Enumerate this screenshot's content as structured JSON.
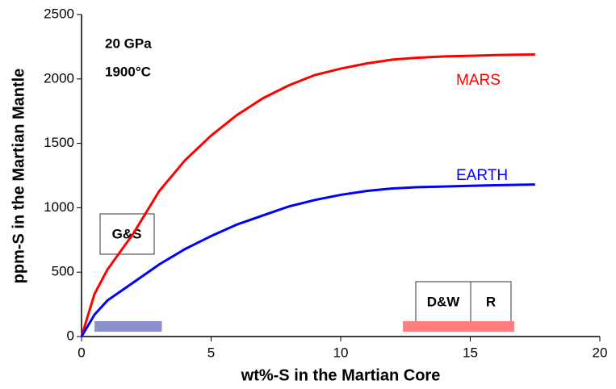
{
  "chart_data": {
    "type": "line",
    "xlabel": "wt%-S in the Martian Core",
    "ylabel": "ppm-S in the Martian Mantle",
    "x": [
      0,
      0.5,
      1,
      2,
      3,
      4,
      5,
      6,
      7,
      8,
      9,
      10,
      11,
      12,
      13,
      14,
      15,
      16,
      17.5
    ],
    "series": [
      {
        "name": "MARS",
        "color": "#ff0000",
        "values": [
          0,
          330,
          520,
          800,
          1130,
          1370,
          1560,
          1720,
          1850,
          1950,
          2030,
          2080,
          2120,
          2150,
          2165,
          2175,
          2180,
          2185,
          2190
        ]
      },
      {
        "name": "EARTH",
        "color": "#0000ff",
        "values": [
          0,
          170,
          280,
          420,
          560,
          680,
          780,
          870,
          940,
          1010,
          1060,
          1100,
          1130,
          1150,
          1160,
          1165,
          1170,
          1175,
          1180
        ]
      }
    ],
    "bands": [
      {
        "color": "#8c8fd0",
        "x": [
          0.5,
          3.1
        ]
      },
      {
        "color": "#ff7f7f",
        "x": [
          12.4,
          16.7
        ]
      }
    ],
    "annotations": [
      "20 GPa",
      "1900°C",
      "G&S",
      "D&W",
      "R"
    ],
    "xlim": [
      0,
      20
    ],
    "xticks": [
      0,
      5,
      10,
      15,
      20
    ],
    "ylim": [
      0,
      2500
    ],
    "yticks": [
      0,
      500,
      1000,
      1500,
      2000,
      2500
    ],
    "grid": false
  }
}
